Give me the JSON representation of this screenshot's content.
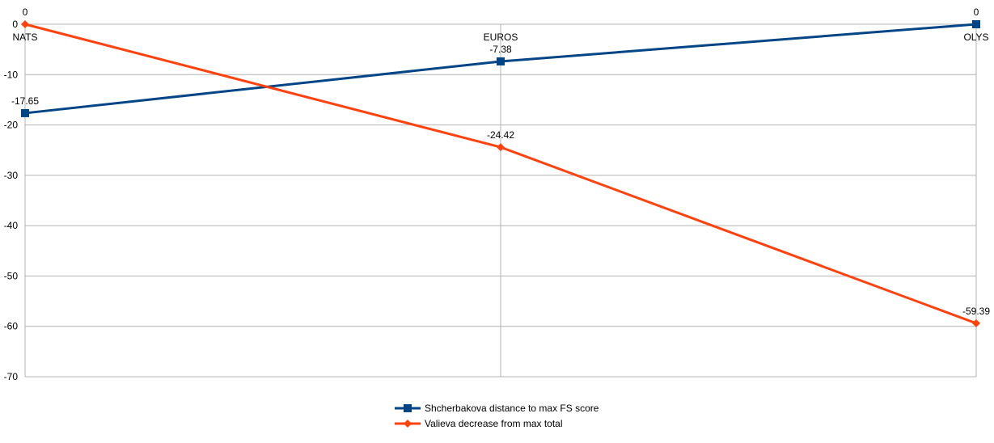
{
  "chart_data": {
    "type": "line",
    "title": "",
    "xlabel": "",
    "ylabel": "",
    "categories": [
      "NATS",
      "EUROS",
      "OLYS"
    ],
    "ylim": [
      -70,
      0
    ],
    "yticks": [
      0,
      -10,
      -20,
      -30,
      -40,
      -50,
      -60,
      -70
    ],
    "grid": true,
    "legend_position": "bottom",
    "series": [
      {
        "name": "Shcherbakova distance to max FS score",
        "values": [
          -17.65,
          -7.38,
          0
        ],
        "labels": [
          "-17.65",
          "-7.38",
          "0"
        ],
        "color": "#004586",
        "marker": "square"
      },
      {
        "name": "Valieva decrease from max total",
        "values": [
          0,
          -24.42,
          -59.39
        ],
        "labels": [
          "0",
          "-24.42",
          "-59.39"
        ],
        "color": "#ff420e",
        "marker": "diamond"
      }
    ]
  }
}
